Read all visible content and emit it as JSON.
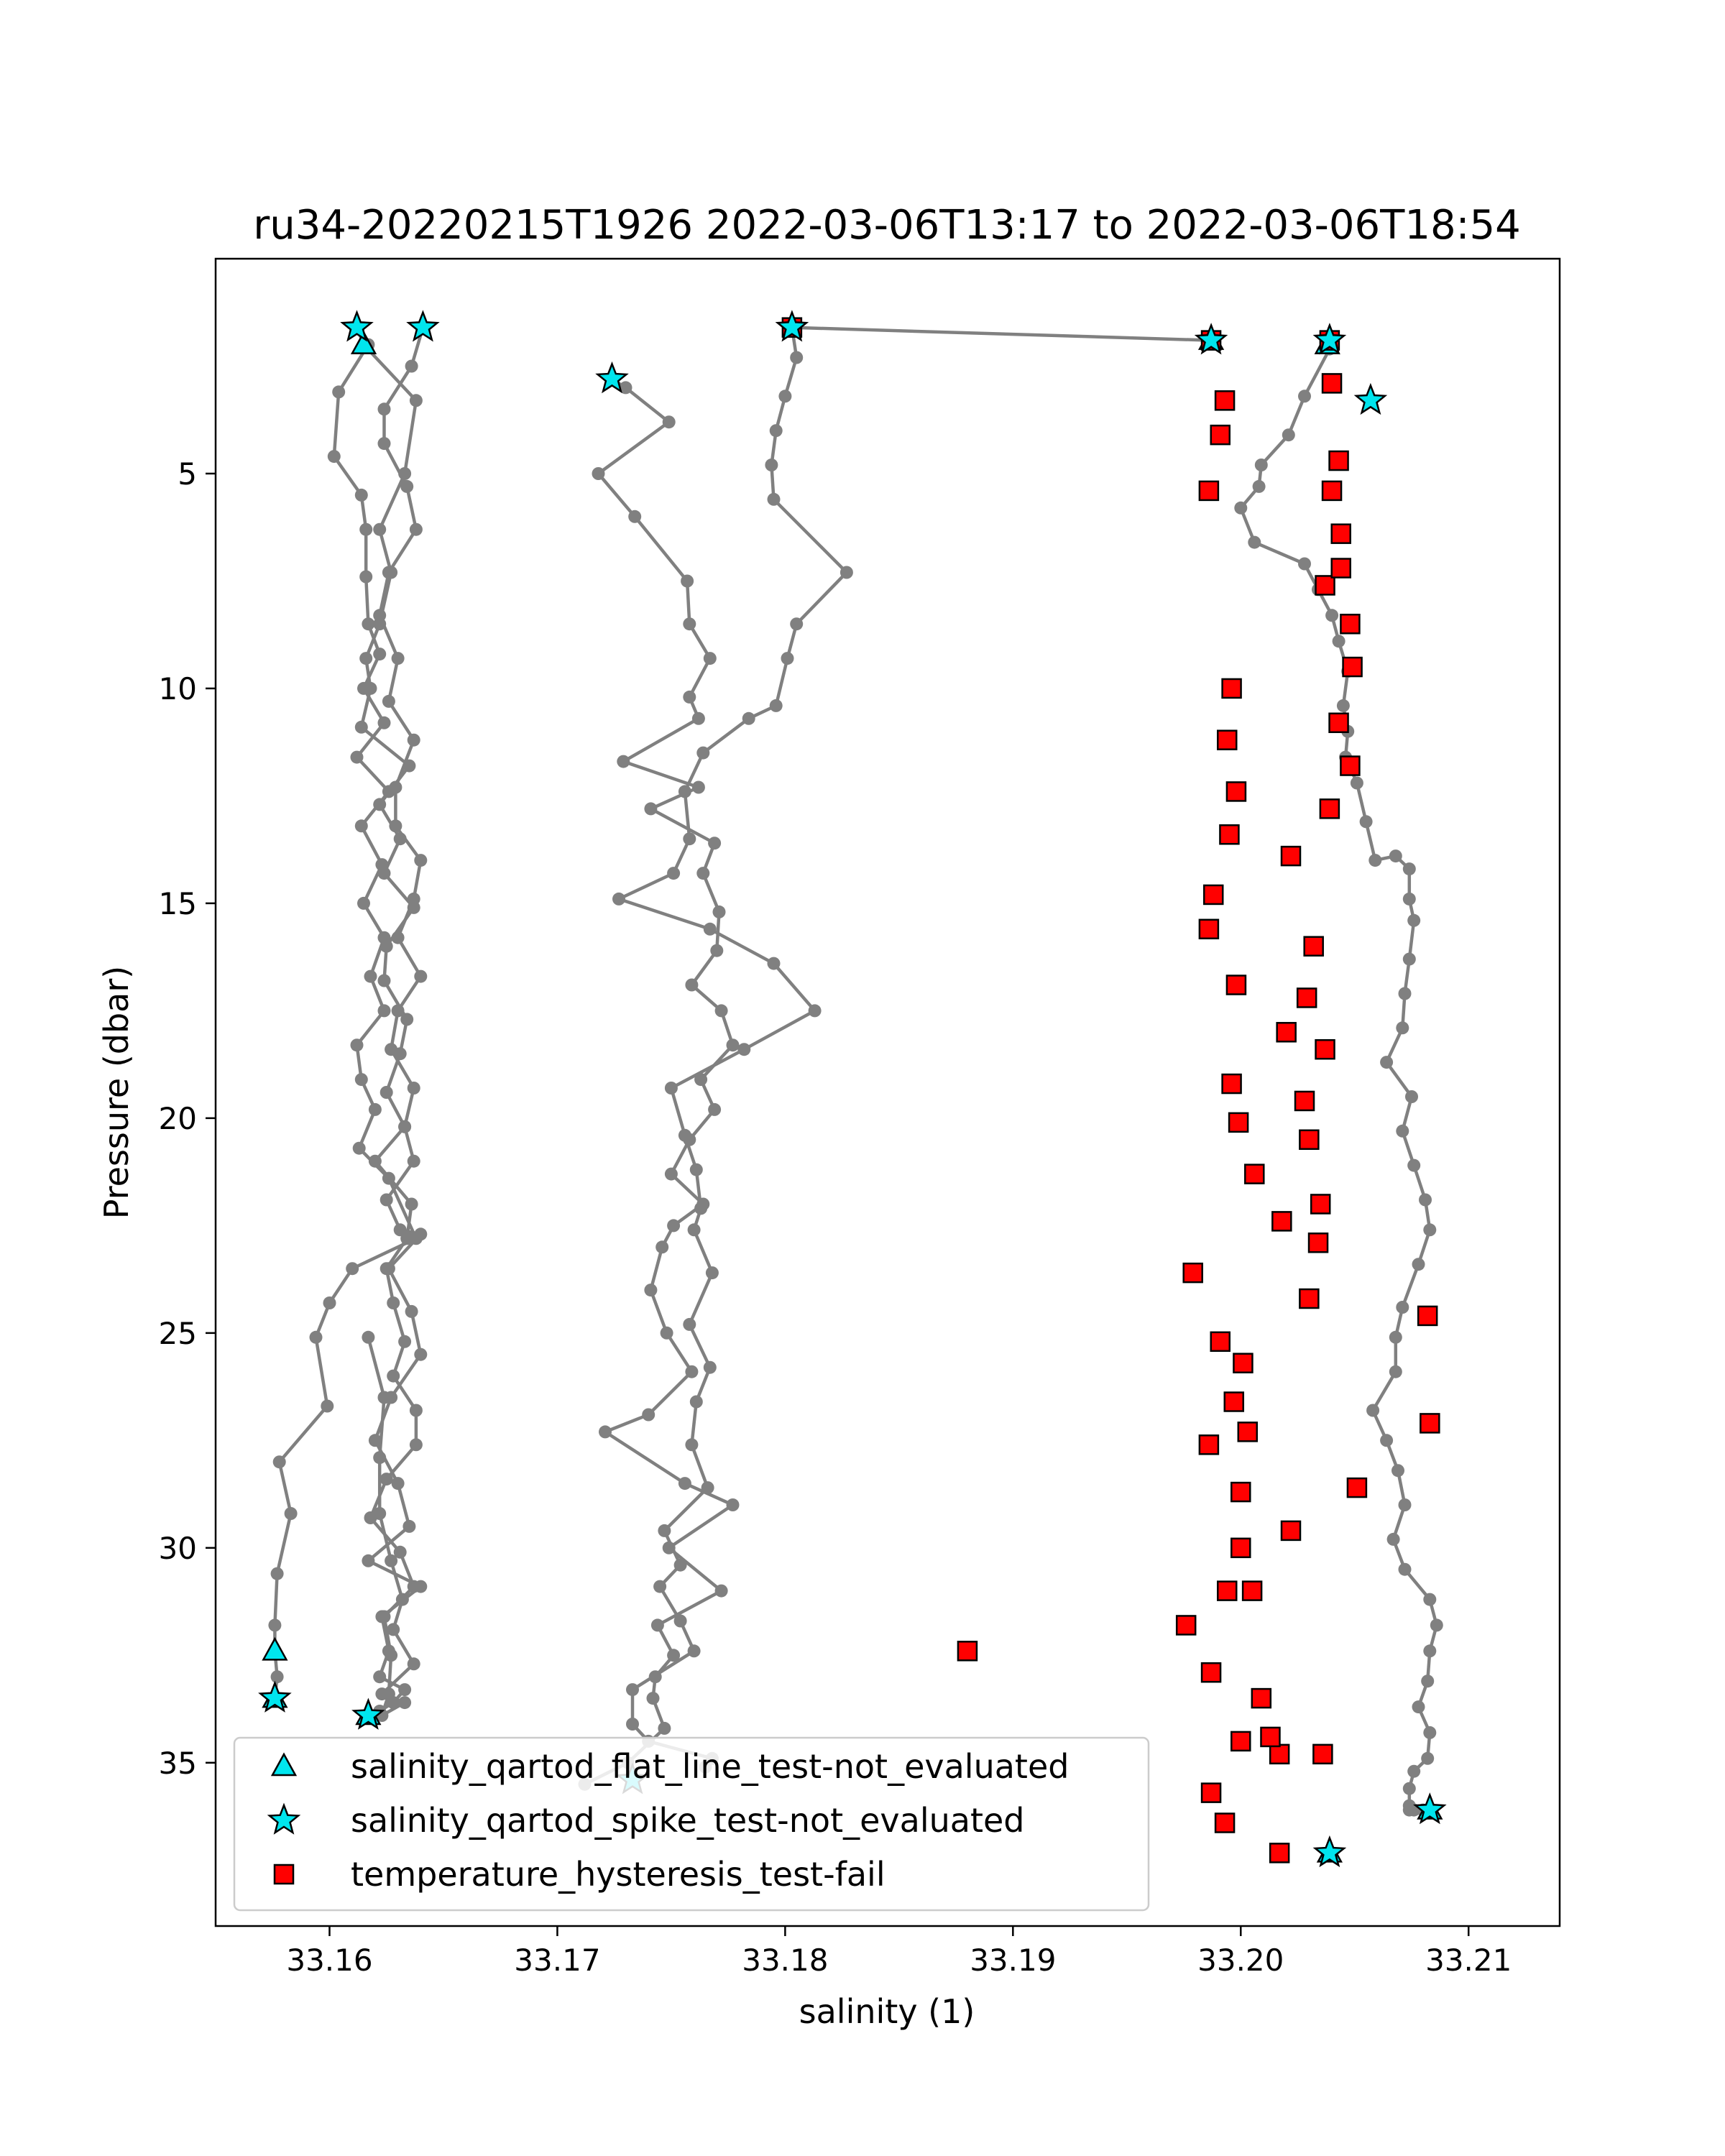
{
  "chart_data": {
    "type": "scatter",
    "title": "ru34-20220215T1926 2022-03-06T13:17 to 2022-03-06T18:54",
    "xlabel": "salinity (1)",
    "ylabel": "Pressure (dbar)",
    "xlim": [
      33.155,
      33.214
    ],
    "ylim": [
      38.8,
      0.0
    ],
    "y_inverted": true,
    "xticks": [
      "33.16",
      "33.17",
      "33.18",
      "33.19",
      "33.20",
      "33.21"
    ],
    "xtick_values": [
      33.16,
      33.17,
      33.18,
      33.19,
      33.2,
      33.21
    ],
    "yticks": [
      "5",
      "10",
      "15",
      "20",
      "25",
      "30",
      "35"
    ],
    "ytick_values": [
      5,
      10,
      15,
      20,
      25,
      30,
      35
    ],
    "grid": false,
    "legend_position": "lower-left",
    "colors": {
      "profile_line": "#808080",
      "marker_cyan": "#00e5ee",
      "marker_red": "#ff0000",
      "marker_edge": "#000000"
    },
    "profiles": [
      {
        "x": [
          33.1612,
          33.1615,
          33.1638,
          33.1633,
          33.1622,
          33.1627,
          33.1622,
          33.1616,
          33.1618,
          33.1614,
          33.1635,
          33.1622,
          33.1631,
          33.1624,
          33.1637,
          33.1625,
          33.1624,
          33.1634,
          33.1631,
          33.1625,
          33.1633,
          33.162,
          33.1636,
          33.1634,
          33.1625,
          33.1628,
          33.1633,
          33.1628,
          33.1638,
          33.1638,
          33.1625,
          33.1618,
          33.1631,
          33.1637,
          33.1624,
          33.1627,
          33.1626,
          33.1623,
          33.1633,
          33.1623,
          33.1637,
          33.1628,
          33.1632,
          33.1627,
          33.1622,
          33.1622,
          33.1624,
          33.1617
        ],
        "y": [
          1.6,
          2.0,
          3.3,
          5.0,
          6.3,
          7.3,
          8.5,
          9.3,
          10.0,
          10.9,
          11.8,
          12.7,
          13.5,
          14.3,
          15.1,
          16.0,
          16.8,
          17.7,
          18.5,
          19.4,
          20.2,
          21.0,
          22.0,
          22.8,
          23.5,
          24.3,
          25.2,
          26.0,
          26.8,
          27.6,
          28.4,
          29.3,
          30.1,
          30.9,
          31.6,
          32.5,
          33.4,
          33.9,
          33.6,
          33.4,
          32.7,
          31.9,
          31.2,
          30.3,
          29.2,
          27.9,
          26.5,
          25.1
        ]
      },
      {
        "x": [
          33.1617,
          33.1604,
          33.1602,
          33.1614,
          33.1616,
          33.1616,
          33.1617,
          33.1622,
          33.1615,
          33.1624,
          33.1612,
          33.1626,
          33.1614,
          33.1623,
          33.1615,
          33.1624,
          33.1618,
          33.1624,
          33.1612,
          33.1614,
          33.162,
          33.1613,
          33.1626,
          33.1638,
          33.161,
          33.16,
          33.1594,
          33.1599,
          33.1578,
          33.1583,
          33.1577,
          33.1576,
          33.1576,
          33.1577,
          33.1576
        ],
        "y": [
          2.0,
          3.1,
          4.6,
          5.5,
          6.3,
          7.4,
          8.5,
          9.2,
          10.0,
          10.8,
          11.6,
          12.4,
          13.2,
          14.1,
          15.0,
          15.8,
          16.7,
          17.5,
          18.3,
          19.1,
          19.8,
          20.7,
          21.4,
          22.8,
          23.5,
          24.3,
          25.1,
          26.7,
          28.0,
          29.2,
          30.6,
          31.8,
          32.4,
          33.0,
          33.5
        ]
      },
      {
        "x": [
          33.1641,
          33.1636,
          33.1624,
          33.1624,
          33.1634,
          33.1638,
          33.1626,
          33.1622,
          33.163,
          33.1626,
          33.1637,
          33.1629,
          33.1629,
          33.164,
          33.1637,
          33.163,
          33.164,
          33.163,
          33.1627,
          33.1637,
          33.1633,
          33.1637,
          33.1625,
          33.1631,
          33.164,
          33.1626,
          33.1636,
          33.164,
          33.1627,
          33.162,
          33.163,
          33.1635,
          33.1617,
          33.164,
          33.1623,
          33.1626,
          33.1622,
          33.1633,
          33.1628,
          33.1622,
          33.1616
        ],
        "y": [
          1.6,
          2.5,
          3.5,
          4.3,
          5.3,
          6.3,
          7.3,
          8.3,
          9.3,
          10.3,
          11.2,
          12.3,
          13.2,
          14.0,
          14.9,
          15.8,
          16.7,
          17.5,
          18.4,
          19.3,
          20.2,
          21.0,
          21.9,
          22.6,
          22.7,
          23.5,
          24.5,
          25.5,
          26.5,
          27.5,
          28.5,
          29.5,
          30.3,
          30.9,
          31.6,
          32.4,
          33.0,
          33.3,
          33.6,
          33.8,
          33.9
        ]
      },
      {
        "x": [
          33.1724,
          33.173,
          33.1749,
          33.1718,
          33.1734,
          33.1757,
          33.1758,
          33.1767,
          33.1758,
          33.1762,
          33.1729,
          33.1762,
          33.1741,
          33.1769,
          33.1764,
          33.1771,
          33.177,
          33.1759,
          33.1772,
          33.1777,
          33.1763,
          33.1769,
          33.1758,
          33.175,
          33.1764,
          33.1751,
          33.1746,
          33.1741,
          33.1748,
          33.1759,
          33.174,
          33.1721,
          33.1756,
          33.1777,
          33.1749,
          33.1772,
          33.1744,
          33.1751,
          33.1743,
          33.1742,
          33.1747,
          33.1731,
          33.1712
        ],
        "y": [
          2.8,
          3.0,
          3.8,
          5.0,
          6.0,
          7.5,
          8.5,
          9.3,
          10.2,
          10.7,
          11.7,
          12.3,
          12.8,
          13.6,
          14.3,
          15.2,
          16.1,
          16.9,
          17.5,
          18.3,
          19.1,
          19.8,
          20.5,
          21.3,
          22.0,
          22.5,
          23.0,
          24.0,
          25.0,
          25.9,
          26.9,
          27.3,
          28.5,
          29.0,
          30.0,
          31.0,
          31.8,
          32.5,
          33.0,
          33.5,
          34.2,
          35.0,
          35.5
        ]
      },
      {
        "x": [
          33.1803,
          33.1805,
          33.18,
          33.1796,
          33.1794,
          33.1795,
          33.1827,
          33.1805,
          33.1801,
          33.1796,
          33.1784,
          33.1764,
          33.1756,
          33.1758,
          33.1751,
          33.1727,
          33.1767,
          33.1795,
          33.1813,
          33.1782,
          33.175,
          33.1756,
          33.1761,
          33.1763,
          33.176,
          33.1768,
          33.1758,
          33.1767,
          33.1761,
          33.1759,
          33.1766,
          33.1747,
          33.1754,
          33.1745,
          33.1754,
          33.176,
          33.1733,
          33.1733,
          33.174,
          33.1768,
          33.1765
        ],
        "y": [
          1.6,
          2.3,
          3.2,
          4.0,
          4.8,
          5.6,
          7.3,
          8.5,
          9.3,
          10.4,
          10.7,
          11.5,
          12.4,
          13.5,
          14.3,
          14.9,
          15.6,
          16.4,
          17.5,
          18.4,
          19.3,
          20.4,
          21.2,
          22.1,
          22.6,
          23.6,
          24.8,
          25.8,
          26.6,
          27.6,
          28.6,
          29.6,
          30.4,
          30.9,
          31.7,
          32.4,
          33.3,
          34.1,
          34.5,
          34.9,
          35.1
        ]
      },
      {
        "x": [
          33.2039,
          33.2028,
          33.2021,
          33.2009,
          33.2008,
          33.2,
          33.2006,
          33.2028,
          33.2034,
          33.204,
          33.2043,
          33.2047,
          33.2045,
          33.2047,
          33.2046,
          33.2051,
          33.2055,
          33.2059,
          33.2068,
          33.2074,
          33.2074,
          33.2076,
          33.2074,
          33.2072,
          33.2071,
          33.2064,
          33.2075,
          33.2071,
          33.2076,
          33.2081,
          33.2083,
          33.2078,
          33.2071,
          33.2068,
          33.2068,
          33.2058,
          33.2064,
          33.2069,
          33.2072,
          33.2067,
          33.2072,
          33.2083,
          33.2086,
          33.2083,
          33.2082,
          33.2078,
          33.2083,
          33.2082,
          33.2076,
          33.2074,
          33.2074,
          33.2074,
          33.2076,
          33.208,
          33.2082
        ],
        "y": [
          2.1,
          3.2,
          4.1,
          4.8,
          5.3,
          5.8,
          6.6,
          7.1,
          7.7,
          8.3,
          8.9,
          9.6,
          10.4,
          11.0,
          11.6,
          12.2,
          13.1,
          14.0,
          13.9,
          14.2,
          14.9,
          15.4,
          16.3,
          17.1,
          17.9,
          18.7,
          19.5,
          20.3,
          21.1,
          21.9,
          22.6,
          23.4,
          24.4,
          25.1,
          25.9,
          26.8,
          27.5,
          28.2,
          29.0,
          29.8,
          30.5,
          31.2,
          31.8,
          32.4,
          33.1,
          33.7,
          34.3,
          34.9,
          35.2,
          35.6,
          36.0,
          36.1,
          36.1,
          36.1,
          36.1
        ]
      }
    ],
    "bridge_line": {
      "x": [
        33.1803,
        33.1987
      ],
      "y": [
        1.6,
        1.9
      ]
    },
    "series": [
      {
        "name": "salinity_qartod_flat_line_test-not_evaluated",
        "marker": "triangle",
        "color": "#00e5ee",
        "x": [
          33.1615,
          33.1576,
          33.1576,
          33.1617,
          33.1987,
          33.2038,
          33.2083,
          33.2039
        ],
        "y": [
          2.0,
          32.4,
          33.5,
          33.9,
          1.9,
          2.0,
          36.1,
          37.1
        ]
      },
      {
        "name": "salinity_qartod_spike_test-not_evaluated",
        "marker": "star",
        "color": "#00e5ee",
        "x": [
          33.1612,
          33.1641,
          33.1724,
          33.1803,
          33.1576,
          33.1617,
          33.1733,
          33.1987,
          33.2039,
          33.2057,
          33.2083,
          33.2039
        ],
        "y": [
          1.6,
          1.6,
          2.8,
          1.6,
          33.5,
          33.9,
          35.4,
          1.9,
          1.9,
          3.3,
          36.1,
          37.1
        ]
      },
      {
        "name": "temperature_hysteresis_test-fail",
        "marker": "square",
        "color": "#ff0000",
        "x": [
          33.1803,
          33.1987,
          33.1993,
          33.1991,
          33.1986,
          33.1996,
          33.1994,
          33.1998,
          33.1995,
          33.1988,
          33.1986,
          33.1998,
          33.1996,
          33.1999,
          33.2006,
          33.1979,
          33.1991,
          33.2001,
          33.1997,
          33.1986,
          33.2,
          33.2,
          33.1994,
          33.2005,
          33.1976,
          33.1987,
          33.2009,
          33.2,
          33.2017,
          33.1987,
          33.1993,
          33.188,
          33.2039,
          33.204,
          33.2043,
          33.2044,
          33.2037,
          33.2044,
          33.2048,
          33.2043,
          33.2049,
          33.2048,
          33.2039,
          33.2022,
          33.2032,
          33.2029,
          33.202,
          33.2037,
          33.2028,
          33.203,
          33.2035,
          33.2018,
          33.2034,
          33.203,
          33.2082,
          33.2003,
          33.2083,
          33.2051,
          33.2022,
          33.2013,
          33.2036,
          33.2017,
          33.204
        ],
        "y": [
          1.6,
          1.9,
          3.3,
          4.1,
          5.4,
          10.0,
          11.2,
          12.4,
          13.4,
          14.8,
          15.6,
          16.9,
          19.2,
          20.1,
          21.3,
          23.6,
          25.2,
          25.7,
          26.6,
          27.6,
          28.7,
          30.0,
          31.0,
          31.0,
          31.8,
          32.9,
          33.5,
          34.5,
          34.8,
          35.7,
          36.4,
          32.4,
          1.9,
          2.9,
          4.7,
          6.4,
          7.6,
          7.2,
          8.5,
          10.8,
          9.5,
          11.8,
          12.8,
          13.9,
          16.0,
          17.2,
          18.0,
          18.4,
          19.6,
          20.5,
          22.0,
          22.4,
          22.9,
          24.2,
          24.6,
          27.3,
          27.1,
          28.6,
          29.6,
          34.4,
          34.8,
          37.1,
          5.4
        ]
      }
    ],
    "legend": [
      {
        "label": "salinity_qartod_flat_line_test-not_evaluated",
        "marker": "triangle",
        "color": "#00e5ee"
      },
      {
        "label": "salinity_qartod_spike_test-not_evaluated",
        "marker": "star",
        "color": "#00e5ee"
      },
      {
        "label": "temperature_hysteresis_test-fail",
        "marker": "square",
        "color": "#ff0000"
      }
    ]
  }
}
